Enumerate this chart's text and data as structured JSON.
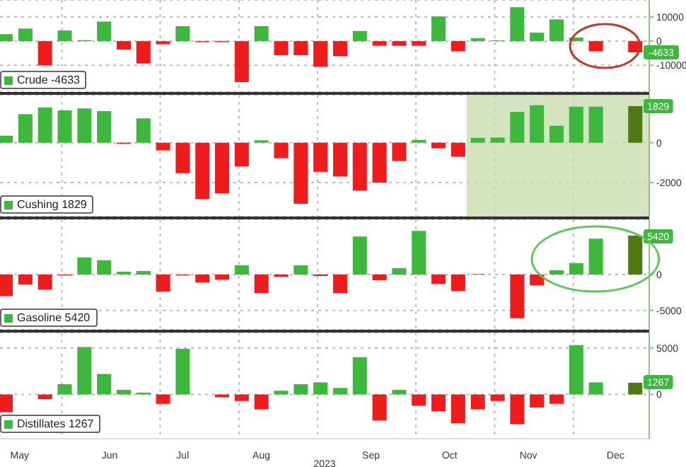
{
  "chart_data": [
    {
      "type": "bar",
      "x": [
        "2023-05-12",
        "2023-05-19",
        "2023-05-26",
        "2023-06-02",
        "2023-06-09",
        "2023-06-16",
        "2023-06-23",
        "2023-06-30",
        "2023-07-07",
        "2023-07-14",
        "2023-07-21",
        "2023-07-28",
        "2023-08-04",
        "2023-08-11",
        "2023-08-18",
        "2023-08-25",
        "2023-09-01",
        "2023-09-08",
        "2023-09-15",
        "2023-09-22",
        "2023-09-29",
        "2023-10-06",
        "2023-10-13",
        "2023-10-20",
        "2023-10-27",
        "2023-11-03",
        "2023-11-10",
        "2023-11-17",
        "2023-11-24",
        "2023-12-01",
        "2023-12-08",
        "2023-12-15",
        "2023-12-22"
      ],
      "series": [
        {
          "name": "Crude  -4633",
          "color": "#3cb93c",
          "values": [
            2900,
            5200,
            -10000,
            4400,
            400,
            8100,
            -3500,
            -9200,
            -1300,
            6200,
            -400,
            -400,
            -16900,
            6200,
            -5800,
            -5800,
            -10600,
            -6200,
            4200,
            -1900,
            -1900,
            -1900,
            10200,
            -4200,
            1200,
            300,
            14000,
            3500,
            9000,
            1500,
            -4200,
            null,
            -4633
          ],
          "colors": [
            "#3cb93c",
            "#3cb93c",
            "#ee1c1c",
            "#3cb93c",
            "#3cb93c",
            "#3cb93c",
            "#ee1c1c",
            "#ee1c1c",
            "#ee1c1c",
            "#3cb93c",
            "#ee1c1c",
            "#ee1c1c",
            "#ee1c1c",
            "#3cb93c",
            "#ee1c1c",
            "#ee1c1c",
            "#ee1c1c",
            "#ee1c1c",
            "#3cb93c",
            "#ee1c1c",
            "#ee1c1c",
            "#ee1c1c",
            "#3cb93c",
            "#ee1c1c",
            "#3cb93c",
            "#3cb93c",
            "#3cb93c",
            "#3cb93c",
            "#3cb93c",
            "#3cb93c",
            "#ee1c1c",
            null,
            "#ee1c1c"
          ]
        }
      ],
      "annotations": [
        {
          "text": "-4633",
          "x": "2023-12-22",
          "y": -4633
        }
      ],
      "xlim": [
        "2023-05-10",
        "2023-12-27"
      ],
      "xticks": [
        {
          "value": "2023-06-01",
          "label": null
        },
        {
          "value": "2023-07-06",
          "label": null
        },
        {
          "value": "2023-08-03",
          "label": null
        },
        {
          "value": "2023-08-31",
          "label": null
        },
        {
          "value": "2023-10-05",
          "label": null
        },
        {
          "value": "2023-11-02",
          "label": null
        },
        {
          "value": "2023-11-30",
          "label": null
        }
      ],
      "ylim": [
        -21000,
        17000
      ],
      "yticks": [
        -10000,
        0,
        10000
      ],
      "tick_labels": "y",
      "grid": true,
      "legend": "bottom left"
    },
    {
      "type": "bar",
      "x": [
        "2023-05-12",
        "2023-05-19",
        "2023-05-26",
        "2023-06-02",
        "2023-06-09",
        "2023-06-16",
        "2023-06-23",
        "2023-06-30",
        "2023-07-07",
        "2023-07-14",
        "2023-07-21",
        "2023-07-28",
        "2023-08-04",
        "2023-08-11",
        "2023-08-18",
        "2023-08-25",
        "2023-09-01",
        "2023-09-08",
        "2023-09-15",
        "2023-09-22",
        "2023-09-29",
        "2023-10-06",
        "2023-10-13",
        "2023-10-20",
        "2023-10-27",
        "2023-11-03",
        "2023-11-10",
        "2023-11-17",
        "2023-11-24",
        "2023-12-01",
        "2023-12-08",
        "2023-12-15",
        "2023-12-22"
      ],
      "series": [
        {
          "name": "Cushing  1829",
          "color": "#3cb93c",
          "values": [
            350,
            1430,
            1760,
            1620,
            1720,
            1580,
            -50,
            1220,
            -380,
            -1530,
            -2820,
            -2540,
            -1180,
            120,
            -780,
            -3060,
            -1460,
            -1690,
            -2400,
            -2000,
            -920,
            140,
            -280,
            -700,
            240,
            260,
            1550,
            1880,
            850,
            1810,
            1810,
            null,
            1829
          ],
          "colors": [
            "#3cb93c",
            "#3cb93c",
            "#3cb93c",
            "#3cb93c",
            "#3cb93c",
            "#3cb93c",
            "#ee1c1c",
            "#3cb93c",
            "#ee1c1c",
            "#ee1c1c",
            "#ee1c1c",
            "#ee1c1c",
            "#ee1c1c",
            "#3cb93c",
            "#ee1c1c",
            "#ee1c1c",
            "#ee1c1c",
            "#ee1c1c",
            "#ee1c1c",
            "#ee1c1c",
            "#ee1c1c",
            "#3cb93c",
            "#ee1c1c",
            "#ee1c1c",
            "#3cb93c",
            "#3cb93c",
            "#3cb93c",
            "#3cb93c",
            "#3cb93c",
            "#3cb93c",
            "#3cb93c",
            null,
            "#4f7a12"
          ]
        }
      ],
      "annotations": [
        {
          "text": "1829",
          "x": "2023-12-22",
          "y": 1829
        }
      ],
      "xlim": [
        "2023-05-10",
        "2023-12-27"
      ],
      "xticks": [
        {
          "value": "2023-06-01",
          "label": null
        },
        {
          "value": "2023-07-06",
          "label": null
        },
        {
          "value": "2023-08-03",
          "label": null
        },
        {
          "value": "2023-08-31",
          "label": null
        },
        {
          "value": "2023-10-05",
          "label": null
        },
        {
          "value": "2023-11-02",
          "label": null
        },
        {
          "value": "2023-11-30",
          "label": null
        }
      ],
      "ylim": [
        -3700,
        2400
      ],
      "yticks": [
        -2000,
        0
      ],
      "bands": [
        {
          "axis": "x",
          "from": "2023-10-23",
          "to": "2023-12-27",
          "color": "#c9dcb0"
        }
      ],
      "tick_labels": "y",
      "grid": true,
      "legend": "bottom left"
    },
    {
      "type": "bar",
      "x": [
        "2023-05-12",
        "2023-05-19",
        "2023-05-26",
        "2023-06-02",
        "2023-06-09",
        "2023-06-16",
        "2023-06-23",
        "2023-06-30",
        "2023-07-07",
        "2023-07-14",
        "2023-07-21",
        "2023-07-28",
        "2023-08-04",
        "2023-08-11",
        "2023-08-18",
        "2023-08-25",
        "2023-09-01",
        "2023-09-08",
        "2023-09-15",
        "2023-09-22",
        "2023-09-29",
        "2023-10-06",
        "2023-10-13",
        "2023-10-20",
        "2023-10-27",
        "2023-11-03",
        "2023-11-10",
        "2023-11-17",
        "2023-11-24",
        "2023-12-01",
        "2023-12-08",
        "2023-12-15",
        "2023-12-22"
      ],
      "series": [
        {
          "name": "Gasoline  5420",
          "color": "#3cb93c",
          "values": [
            -3000,
            -1400,
            -2100,
            -100,
            2400,
            2000,
            400,
            500,
            -2400,
            -100,
            -1100,
            -700,
            1300,
            -2600,
            -300,
            1300,
            -200,
            -2600,
            5300,
            -800,
            900,
            6100,
            -1300,
            -2300,
            100,
            null,
            -6100,
            -1500,
            600,
            1600,
            5000,
            null,
            5420
          ],
          "colors": [
            "#ee1c1c",
            "#ee1c1c",
            "#ee1c1c",
            "#ee1c1c",
            "#3cb93c",
            "#3cb93c",
            "#3cb93c",
            "#3cb93c",
            "#ee1c1c",
            "#ee1c1c",
            "#ee1c1c",
            "#ee1c1c",
            "#3cb93c",
            "#ee1c1c",
            "#ee1c1c",
            "#3cb93c",
            "#ee1c1c",
            "#ee1c1c",
            "#3cb93c",
            "#ee1c1c",
            "#3cb93c",
            "#3cb93c",
            "#ee1c1c",
            "#ee1c1c",
            "#3cb93c",
            null,
            "#ee1c1c",
            "#ee1c1c",
            "#3cb93c",
            "#3cb93c",
            "#3cb93c",
            null,
            "#4f7a12"
          ]
        }
      ],
      "annotations": [
        {
          "text": "5420",
          "x": "2023-12-22",
          "y": 5420
        }
      ],
      "xlim": [
        "2023-05-10",
        "2023-12-27"
      ],
      "xticks": [
        {
          "value": "2023-06-01",
          "label": null
        },
        {
          "value": "2023-07-06",
          "label": null
        },
        {
          "value": "2023-08-03",
          "label": null
        },
        {
          "value": "2023-08-31",
          "label": null
        },
        {
          "value": "2023-10-05",
          "label": null
        },
        {
          "value": "2023-11-02",
          "label": null
        },
        {
          "value": "2023-11-30",
          "label": null
        }
      ],
      "ylim": [
        -7700,
        7700
      ],
      "yticks": [
        -5000,
        0
      ],
      "tick_labels": "y",
      "grid": true,
      "legend": "bottom left"
    },
    {
      "type": "bar",
      "xlabel": "2023",
      "x": [
        "2023-05-12",
        "2023-05-19",
        "2023-05-26",
        "2023-06-02",
        "2023-06-09",
        "2023-06-16",
        "2023-06-23",
        "2023-06-30",
        "2023-07-07",
        "2023-07-14",
        "2023-07-21",
        "2023-07-28",
        "2023-08-04",
        "2023-08-11",
        "2023-08-18",
        "2023-08-25",
        "2023-09-01",
        "2023-09-08",
        "2023-09-15",
        "2023-09-22",
        "2023-09-29",
        "2023-10-06",
        "2023-10-13",
        "2023-10-20",
        "2023-10-27",
        "2023-11-03",
        "2023-11-10",
        "2023-11-17",
        "2023-11-24",
        "2023-12-01",
        "2023-12-08",
        "2023-12-15",
        "2023-12-22"
      ],
      "series": [
        {
          "name": "Distillates  1267",
          "color": "#3cb93c",
          "values": [
            -1900,
            null,
            -500,
            1100,
            5100,
            2200,
            500,
            200,
            -1000,
            4900,
            null,
            -300,
            -700,
            -1600,
            400,
            1100,
            1300,
            700,
            4000,
            -2800,
            500,
            -1200,
            -1800,
            -3100,
            -1600,
            -700,
            -3200,
            -1400,
            -1000,
            5300,
            1300,
            null,
            1267
          ],
          "colors": [
            "#ee1c1c",
            null,
            "#ee1c1c",
            "#3cb93c",
            "#3cb93c",
            "#3cb93c",
            "#3cb93c",
            "#3cb93c",
            "#ee1c1c",
            "#3cb93c",
            null,
            "#ee1c1c",
            "#ee1c1c",
            "#ee1c1c",
            "#3cb93c",
            "#3cb93c",
            "#3cb93c",
            "#3cb93c",
            "#3cb93c",
            "#ee1c1c",
            "#3cb93c",
            "#ee1c1c",
            "#ee1c1c",
            "#ee1c1c",
            "#ee1c1c",
            "#ee1c1c",
            "#ee1c1c",
            "#ee1c1c",
            "#ee1c1c",
            "#3cb93c",
            "#3cb93c",
            null,
            "#4f7a12"
          ]
        }
      ],
      "annotations": [
        {
          "text": "1267",
          "x": "2023-12-22",
          "y": 1267
        }
      ],
      "xlim": [
        "2023-05-10",
        "2023-12-27"
      ],
      "xticks": [
        {
          "value": "2023-05-17",
          "label": "May"
        },
        {
          "value": "2023-06-01",
          "label": null
        },
        {
          "value": "2023-06-18",
          "label": "Jun"
        },
        {
          "value": "2023-07-06",
          "label": null
        },
        {
          "value": "2023-07-14",
          "label": "Jul"
        },
        {
          "value": "2023-08-03",
          "label": null
        },
        {
          "value": "2023-08-11",
          "label": "Aug"
        },
        {
          "value": "2023-08-31",
          "label": null
        },
        {
          "value": "2023-09-19",
          "label": "Sep"
        },
        {
          "value": "2023-10-05",
          "label": null
        },
        {
          "value": "2023-10-17",
          "label": "Oct"
        },
        {
          "value": "2023-11-02",
          "label": null
        },
        {
          "value": "2023-11-14",
          "label": "Nov"
        },
        {
          "value": "2023-11-30",
          "label": null
        },
        {
          "value": "2023-12-15",
          "label": "Dec"
        }
      ],
      "ylim": [
        -4750,
        6650
      ],
      "yticks": [
        0,
        5000
      ],
      "grid": true,
      "legend": "bottom left"
    }
  ]
}
